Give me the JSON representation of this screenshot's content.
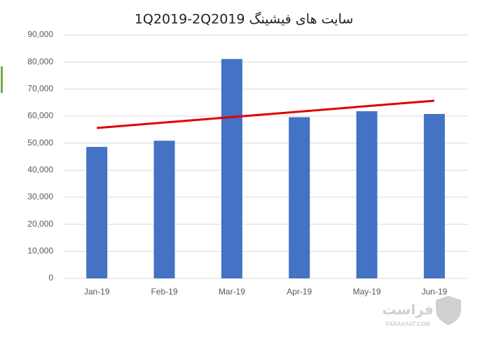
{
  "chart_data": {
    "type": "bar",
    "title": "1Q2019-2Q2019  سایت های فیشینگ",
    "categories": [
      "Jan-19",
      "Feb-19",
      "Mar-19",
      "Apr-19",
      "May-19",
      "Jun-19"
    ],
    "values": [
      48600,
      50900,
      81100,
      59600,
      61800,
      60800
    ],
    "color": "#4472c4",
    "trendline": {
      "color": "#e00000",
      "start": 55600,
      "end": 65700
    },
    "ylim": [
      0,
      90000
    ],
    "yticks": [
      0,
      {
        "value": 10000,
        "label": "10,000"
      },
      {
        "value": 20000,
        "label": "20,000"
      },
      {
        "value": 30000,
        "label": "30,000"
      },
      {
        "value": 40000,
        "label": "40,000"
      },
      {
        "value": 50000,
        "label": "50,000"
      },
      {
        "value": 60000,
        "label": "60,000"
      },
      {
        "value": 70000,
        "label": "70,000"
      },
      {
        "value": 80000,
        "label": "80,000"
      },
      {
        "value": 90000,
        "label": "90,000"
      }
    ],
    "grid": true
  },
  "watermark": {
    "name": "فراست",
    "site": "FARAASAT.COM"
  }
}
